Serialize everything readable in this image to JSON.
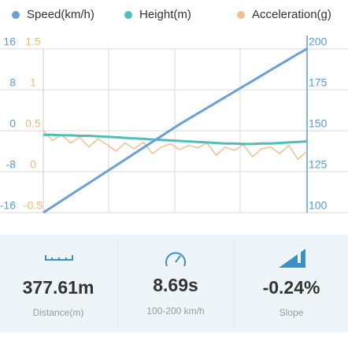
{
  "chart_data": {
    "type": "line",
    "series": [
      {
        "name": "Speed(km/h)",
        "color": "#6a9fd8",
        "axis": "y2",
        "values": [
          100,
          103.6,
          107.2,
          110.8,
          114.4,
          118,
          121.6,
          125.2,
          128.8,
          132.4,
          136,
          139.6,
          143.2,
          146.8,
          150.4,
          154,
          157.3,
          160.6,
          163.9,
          167.2,
          170.5,
          173.8,
          177.1,
          180.4,
          183.7,
          187,
          190.3,
          193.6,
          196.9,
          200
        ]
      },
      {
        "name": "Height(m)",
        "color": "#4dbfb8",
        "values": [
          -0.8,
          -0.8,
          -0.9,
          -0.9,
          -1,
          -1,
          -1.1,
          -1.2,
          -1.3,
          -1.4,
          -1.5,
          -1.6,
          -1.7,
          -1.8,
          -1.9,
          -2,
          -2.1,
          -2.2,
          -2.3,
          -2.4,
          -2.5,
          -2.5,
          -2.6,
          -2.6,
          -2.5,
          -2.5,
          -2.4,
          -2.3,
          -2.2,
          -2.1
        ]
      },
      {
        "name": "Acceleration(g)",
        "color": "#f0c090",
        "axis": "y3",
        "values": [
          0.5,
          0.38,
          0.45,
          0.35,
          0.42,
          0.3,
          0.4,
          0.33,
          0.25,
          0.35,
          0.28,
          0.36,
          0.22,
          0.3,
          0.34,
          0.27,
          0.32,
          0.29,
          0.35,
          0.2,
          0.3,
          0.26,
          0.33,
          0.18,
          0.28,
          0.3,
          0.22,
          0.32,
          0.15,
          0.25
        ]
      }
    ],
    "ylim": [
      -16,
      16
    ],
    "yticks": [
      16,
      8,
      0,
      -8,
      -16
    ],
    "y2lim": [
      100,
      200
    ],
    "y2ticks": [
      200,
      175,
      150,
      125,
      100
    ],
    "y3lim": [
      -0.5,
      1.5
    ],
    "y3ticks": [
      1.5,
      1,
      0.5,
      0,
      -0.5
    ],
    "grid": true
  },
  "stats": [
    {
      "value": "377.61m",
      "label": "Distance(m)"
    },
    {
      "value": "8.69s",
      "label": "100-200 km/h"
    },
    {
      "value": "-0.24%",
      "label": "Slope"
    }
  ]
}
